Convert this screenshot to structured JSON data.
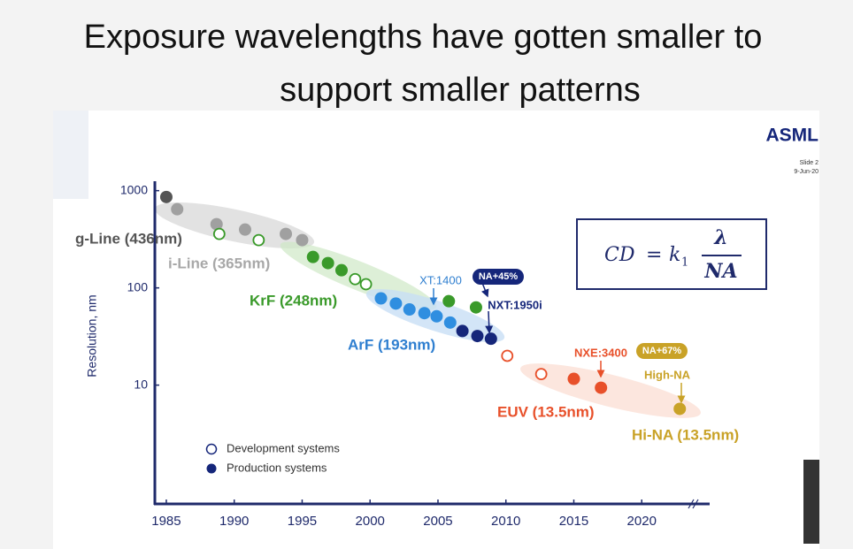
{
  "chart_data": {
    "type": "scatter",
    "title": [
      "Exposure wavelengths have gotten smaller to",
      "support smaller patterns"
    ],
    "company": "ASML",
    "slide_info": [
      "Slide 2",
      "9-Jun-20"
    ],
    "y_label": "Resolution, nm",
    "log_y": true,
    "grid": false,
    "xlim": [
      1984,
      2025
    ],
    "ylim": [
      0.6,
      1250
    ],
    "xticks": [
      1985,
      1990,
      1995,
      2000,
      2005,
      2010,
      2015,
      2020
    ],
    "yticks": [
      1000,
      100,
      10
    ],
    "legend": {
      "open": "Development systems",
      "filled": "Production systems"
    },
    "series": [
      {
        "name": "g-Line (436nm)",
        "color": "#555555",
        "x": [
          1985
        ],
        "values": [
          860
        ],
        "filled": [
          true
        ],
        "colors": [
          "#555555"
        ]
      },
      {
        "name": "i-Line (365nm)",
        "color": "#a8a8a8",
        "x": [
          1985.8,
          1988.7,
          1988.9,
          1990.8,
          1991.8,
          1993.8,
          1995.0
        ],
        "values": [
          644,
          452,
          359,
          398,
          310,
          359,
          310
        ],
        "filled": [
          true,
          true,
          false,
          true,
          false,
          true,
          true
        ],
        "colors": [
          "#a0a0a0",
          "#a0a0a0",
          "#3a9a2a",
          "#a0a0a0",
          "#3a9a2a",
          "#a0a0a0",
          "#a0a0a0"
        ]
      },
      {
        "name": "KrF (248nm)",
        "color": "#3a9a2a",
        "x": [
          1995.8,
          1996.9,
          1997.9,
          1998.9,
          1999.7,
          2005.8,
          2007.8
        ],
        "values": [
          208,
          180,
          152,
          123,
          109,
          73,
          63
        ],
        "filled": [
          true,
          true,
          true,
          false,
          false,
          true,
          true
        ],
        "colors": [
          "#3a9a2a",
          "#3a9a2a",
          "#3a9a2a",
          "#3a9a2a",
          "#3a9a2a",
          "#3a9a2a",
          "#3a9a2a"
        ]
      },
      {
        "name": "ArF (193nm)",
        "color": "#2f7fd0",
        "x": [
          2000.8,
          2001.9,
          2002.9,
          2004.0,
          2004.9,
          2005.9,
          2006.8,
          2007.9,
          2008.9
        ],
        "values": [
          78,
          69,
          60,
          55,
          51,
          44,
          36,
          32,
          30
        ],
        "filled": [
          true,
          true,
          true,
          true,
          true,
          true,
          true,
          true,
          true
        ],
        "colors": [
          "#2f8ee0",
          "#2f8ee0",
          "#2f8ee0",
          "#2f8ee0",
          "#2f8ee0",
          "#2f8ee0",
          "#15267a",
          "#15267a",
          "#15267a"
        ]
      },
      {
        "name": "EUV (13.5nm)",
        "color": "#e8502a",
        "x": [
          2010.1,
          2012.6,
          2015.0,
          2017.0
        ],
        "values": [
          20,
          13,
          11.6,
          9.4
        ],
        "filled": [
          false,
          false,
          true,
          true
        ],
        "colors": [
          "#e8502a",
          "#e8502a",
          "#e8502a",
          "#e8502a"
        ]
      },
      {
        "name": "Hi-NA (13.5nm)",
        "color": "#c9a227",
        "x": [
          2022.8
        ],
        "values": [
          5.7
        ],
        "filled": [
          true
        ],
        "colors": [
          "#c9a227"
        ]
      }
    ],
    "annotations": [
      "XT:1400",
      "NA+45%",
      "NXT:1950i",
      "NXE:3400",
      "NA+67%",
      "High-NA"
    ],
    "formula": {
      "lhs": "CD",
      "eq": "=",
      "k": "k",
      "sub": "1",
      "num": "λ",
      "den": "NA"
    }
  }
}
